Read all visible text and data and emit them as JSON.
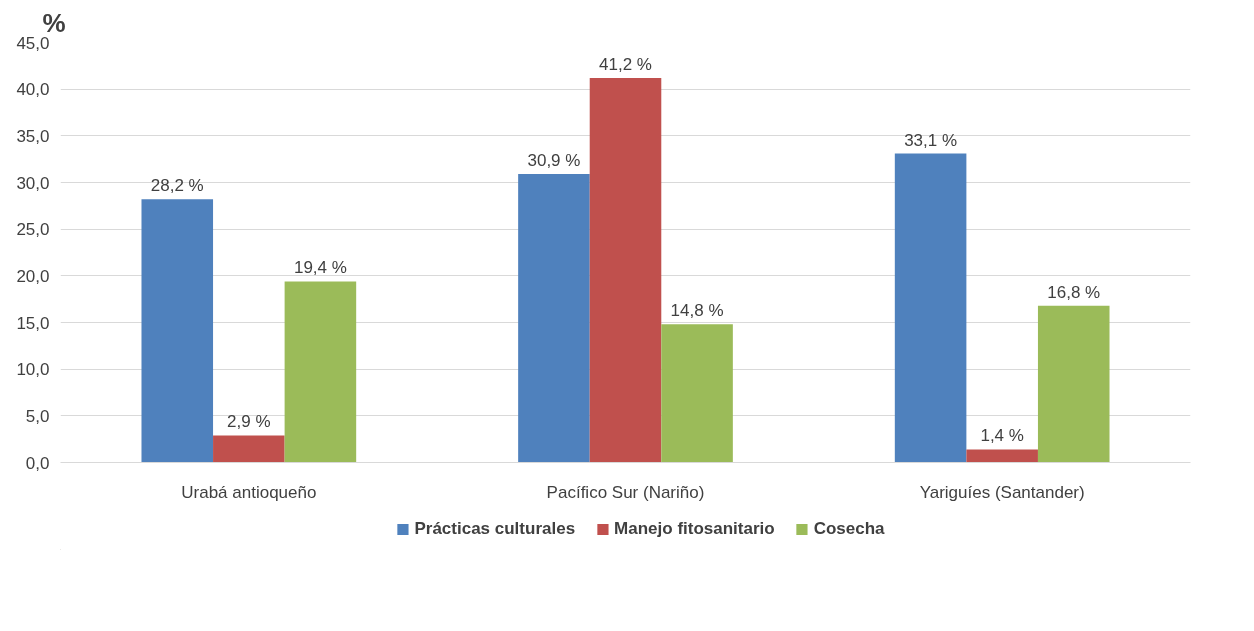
{
  "chart_data": {
    "type": "bar",
    "ylabel": "%",
    "categories": [
      "Urabá antioqueño",
      "Pacífico Sur (Nariño)",
      "Yariguíes (Santander)"
    ],
    "series": [
      {
        "name": "Prácticas culturales",
        "color": "#4f81bd",
        "values": [
          28.2,
          30.9,
          33.1
        ],
        "value_labels": [
          "28,2 %",
          "30,9 %",
          "33,1 %"
        ]
      },
      {
        "name": "Manejo fitosanitario",
        "color": "#c0504d",
        "values": [
          2.9,
          41.2,
          1.4
        ],
        "value_labels": [
          "2,9 %",
          "41,2 %",
          "1,4 %"
        ]
      },
      {
        "name": "Cosecha",
        "color": "#9bbb59",
        "values": [
          19.4,
          14.8,
          16.8
        ],
        "value_labels": [
          "19,4 %",
          "14,8 %",
          "16,8 %"
        ]
      }
    ],
    "ylim": [
      0,
      45
    ],
    "yticks": [
      {
        "value": 0,
        "label": "0,0"
      },
      {
        "value": 5,
        "label": "5,0"
      },
      {
        "value": 10,
        "label": "10,0"
      },
      {
        "value": 15,
        "label": "15,0"
      },
      {
        "value": 20,
        "label": "20,0"
      },
      {
        "value": 25,
        "label": "25,0"
      },
      {
        "value": 30,
        "label": "30,0"
      },
      {
        "value": 35,
        "label": "35,0"
      },
      {
        "value": 40,
        "label": "40,0"
      },
      {
        "value": 45,
        "label": "45,0"
      }
    ],
    "grid": "y",
    "legend": "bottom"
  }
}
